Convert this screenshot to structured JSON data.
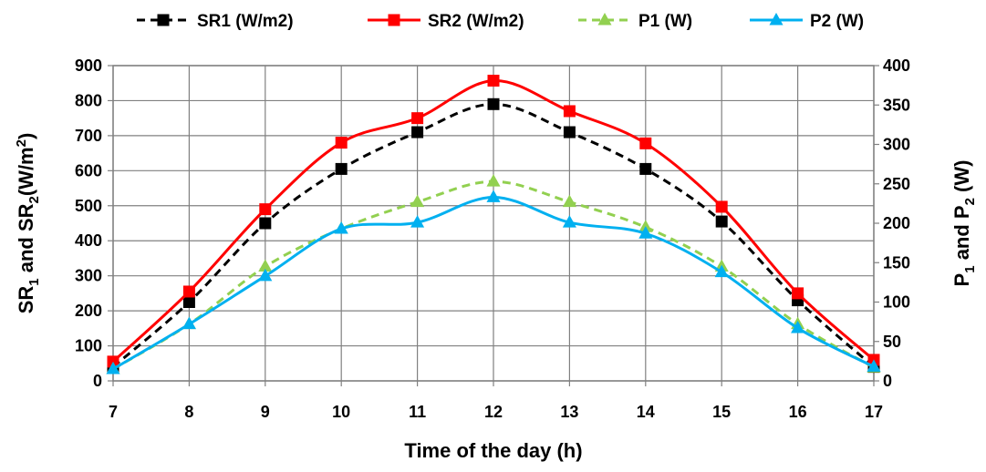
{
  "chart_data": {
    "type": "line",
    "xlabel": "Time of the day (h)",
    "ylabel_left": {
      "main": "SR",
      "sub1": "1",
      "mid": " and SR",
      "sub2": "2",
      "unit": "(W/m",
      "sup": "2",
      "close": ")"
    },
    "ylabel_right": {
      "main": "P",
      "sub1": "1",
      "mid": " and P",
      "sub2": "2",
      "unit": " (W)"
    },
    "x": [
      7,
      8,
      9,
      10,
      11,
      12,
      13,
      14,
      15,
      16,
      17
    ],
    "xlim": [
      7,
      17
    ],
    "ylim_left": [
      0,
      900
    ],
    "ylim_right": [
      0,
      400
    ],
    "left_ticks": [
      "0",
      "100",
      "200",
      "300",
      "400",
      "500",
      "600",
      "700",
      "800",
      "900"
    ],
    "right_ticks": [
      "0",
      "50",
      "100",
      "150",
      "200",
      "250",
      "300",
      "350",
      "400"
    ],
    "x_ticks": [
      "7",
      "8",
      "9",
      "10",
      "11",
      "12",
      "13",
      "14",
      "15",
      "16",
      "17"
    ],
    "grid": true,
    "legend_position": "top",
    "series": [
      {
        "name": "SR1 (W/m2)",
        "axis": "left",
        "color": "#000000",
        "dash": "dashed",
        "marker": "square",
        "values": [
          40,
          225,
          450,
          605,
          710,
          790,
          710,
          605,
          455,
          230,
          40
        ]
      },
      {
        "name": "SR2 (W/m2)",
        "axis": "left",
        "color": "#ff0000",
        "dash": "solid",
        "marker": "square",
        "values": [
          55,
          255,
          490,
          680,
          750,
          857,
          770,
          678,
          497,
          250,
          60
        ]
      },
      {
        "name": "P1 (W)",
        "axis": "right",
        "color": "#92d050",
        "dash": "dashed",
        "marker": "triangle",
        "values": [
          15,
          72,
          145,
          193,
          227,
          253,
          227,
          195,
          145,
          72,
          17
        ]
      },
      {
        "name": "P2 (W)",
        "axis": "right",
        "color": "#00b0f0",
        "dash": "solid",
        "marker": "triangle",
        "values": [
          15,
          72,
          133,
          193,
          201,
          233,
          201,
          187,
          138,
          67,
          18
        ]
      }
    ]
  }
}
